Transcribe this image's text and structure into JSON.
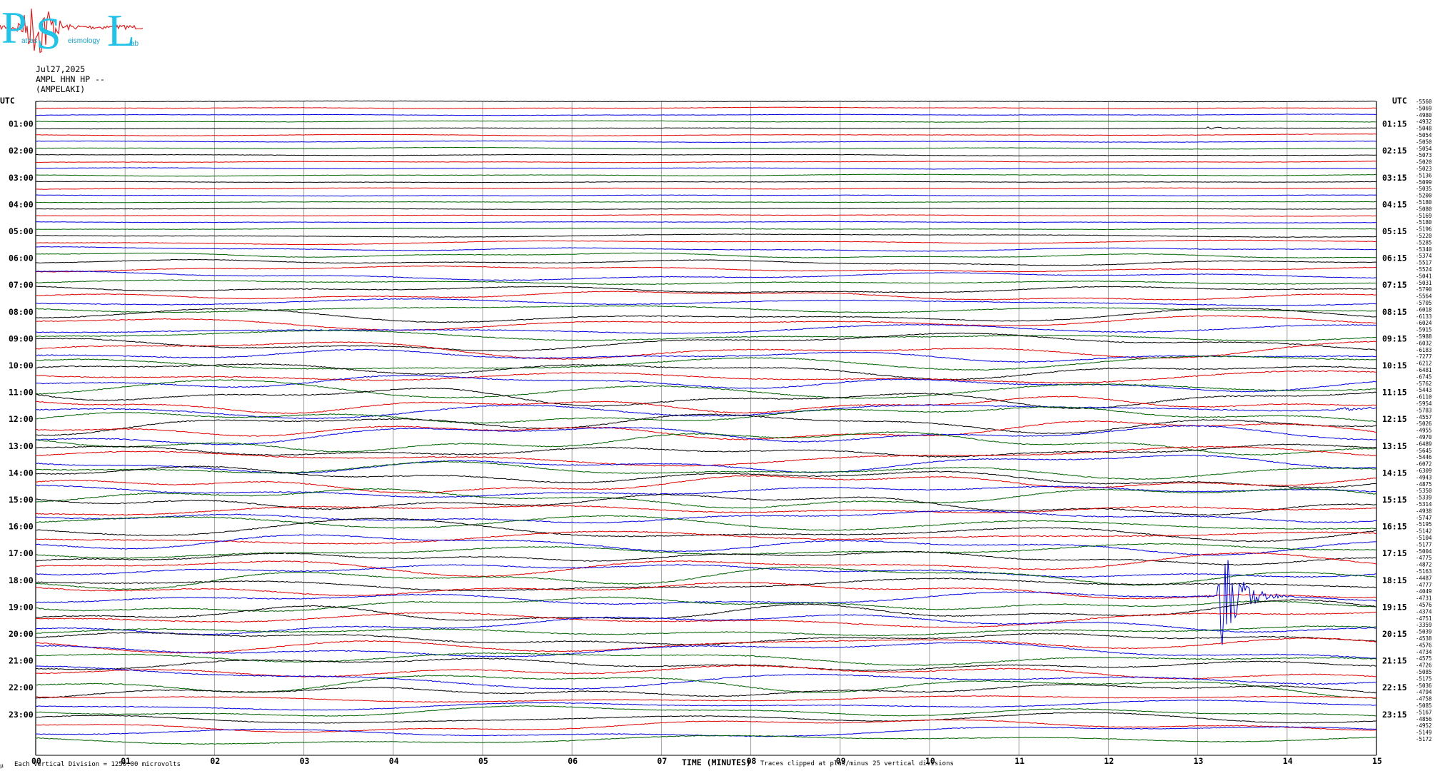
{
  "header": {
    "logo_letters": "PSL",
    "logo_subtext": [
      "atras",
      "eismology",
      "ab"
    ],
    "date": "Jul27,2025",
    "station_line": "AMPL HHN HP --",
    "station_name": "(AMPELAKI)"
  },
  "footer": {
    "scale_note": "Each Vertical Division = 1250.00 microvolts",
    "x_title": "TIME (MINUTES)",
    "clip_note": "Traces clipped at plus/minus 25 vertical divisions",
    "corner_mark": "μ"
  },
  "colors": {
    "trace_cycle": [
      "#000000",
      "#e00000",
      "#0000e0",
      "#006000"
    ],
    "grid": "#a0a0a0",
    "logo_cyan": "#22c3e6",
    "logo_red": "#e02020"
  },
  "chart_data": {
    "type": "line",
    "title": "",
    "xlabel": "TIME (MINUTES)",
    "xlim": [
      0,
      15
    ],
    "x_ticks": [
      "00",
      "01",
      "02",
      "03",
      "04",
      "05",
      "06",
      "07",
      "08",
      "09",
      "10",
      "11",
      "12",
      "13",
      "14",
      "15"
    ],
    "left_axis_title": "UTC",
    "right_axis_title": "UTC",
    "left_labels": [
      "01:00",
      "02:00",
      "03:00",
      "04:00",
      "05:00",
      "06:00",
      "07:00",
      "08:00",
      "09:00",
      "10:00",
      "11:00",
      "12:00",
      "13:00",
      "14:00",
      "15:00",
      "16:00",
      "17:00",
      "18:00",
      "19:00",
      "20:00",
      "21:00",
      "22:00",
      "23:00"
    ],
    "right_labels": [
      "01:15",
      "02:15",
      "03:15",
      "04:15",
      "05:15",
      "06:15",
      "07:15",
      "08:15",
      "09:15",
      "10:15",
      "11:15",
      "12:15",
      "13:15",
      "14:15",
      "15:15",
      "16:15",
      "17:15",
      "18:15",
      "19:15",
      "20:15",
      "21:15",
      "22:15",
      "23:15"
    ],
    "trace_count": 96,
    "trace_offsets": [
      "-5560",
      "-5069",
      "-4980",
      "-4932",
      "-5048",
      "-5054",
      "-5050",
      "-5054",
      "-5073",
      "-5020",
      "-5023",
      "-5136",
      "-5099",
      "-5035",
      "-5200",
      "-5180",
      "-5080",
      "-5169",
      "-5180",
      "-5196",
      "-5220",
      "-5285",
      "-5340",
      "-5374",
      "-5517",
      "-5524",
      "-5041",
      "-5031",
      "-5790",
      "-5564",
      "-5705",
      "-6018",
      "-6133",
      "-6024",
      "-5915",
      "-5988",
      "-6032",
      "-6183",
      "-7277",
      "-6212",
      "-6481",
      "-6745",
      "-5762",
      "-5443",
      "-6110",
      "-5954",
      "-5783",
      "-4557",
      "-5026",
      "-4955",
      "-4970",
      "-6489",
      "-5645",
      "-5446",
      "-6072",
      "-6309",
      "-4943",
      "-4875",
      "-5350",
      "-5339",
      "-5314",
      "-4938",
      "-5747",
      "-5195",
      "-5142",
      "-5104",
      "-5177",
      "-5004",
      "-4775",
      "-4872",
      "-5163",
      "-4487",
      "-4777",
      "-4049",
      "-4731",
      "-4576",
      "-4374",
      "-4751",
      "-3359",
      "-5039",
      "-4538",
      "-4576",
      "-4734",
      "-4575",
      "-4726",
      "-5085",
      "-5175",
      "-5036",
      "-4794",
      "-4758",
      "-5085",
      "-5167",
      "-4856",
      "-4952",
      "-5149",
      "-5172"
    ],
    "events": [
      {
        "trace_index": 4,
        "minute": 13.1,
        "amplitude_divisions": 1,
        "color": "green"
      },
      {
        "trace_index": 19,
        "minute": 7.8,
        "amplitude_divisions": 0.4,
        "color": "black"
      },
      {
        "trace_index": 46,
        "minute": 14.6,
        "amplitude_divisions": 1.2,
        "color": "black"
      },
      {
        "trace_index": 73,
        "minute": 13.1,
        "amplitude_divisions": 0.8,
        "color": "black"
      },
      {
        "trace_index": 74,
        "minute": 13.25,
        "amplitude_divisions": 25,
        "color": "red"
      }
    ]
  }
}
